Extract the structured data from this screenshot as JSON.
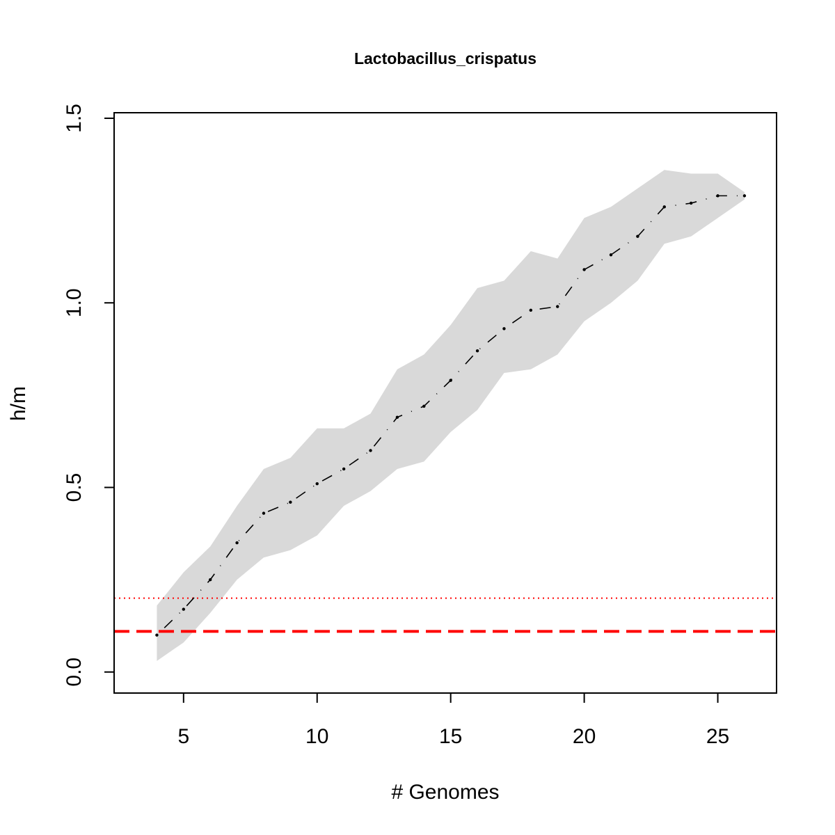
{
  "chart_data": {
    "type": "line",
    "title": "Lactobacillus_crispatus",
    "xlabel": "# Genomes",
    "ylabel": "h/m",
    "xlim": [
      2.4,
      27.2
    ],
    "ylim": [
      -0.057,
      1.515
    ],
    "xticks": [
      5,
      10,
      15,
      20,
      25
    ],
    "xtick_labels": [
      "5",
      "10",
      "15",
      "20",
      "25"
    ],
    "yticks": [
      0.0,
      0.5,
      1.0,
      1.5
    ],
    "ytick_labels": [
      "0.0",
      "0.5",
      "1.0",
      "1.5"
    ],
    "grid": false,
    "colors": {
      "band": "#d9d9d9",
      "series": "#000000",
      "threshold": "#ff0000"
    },
    "series": [
      {
        "style": "dotted-dashed",
        "x": [
          4,
          5,
          6,
          7,
          8,
          9,
          10,
          11,
          12,
          13,
          14,
          15,
          16,
          17,
          18,
          19,
          20,
          21,
          22,
          23,
          24,
          25,
          26
        ],
        "y": [
          0.1,
          0.17,
          0.25,
          0.35,
          0.43,
          0.46,
          0.51,
          0.55,
          0.6,
          0.69,
          0.72,
          0.79,
          0.87,
          0.93,
          0.98,
          0.99,
          1.09,
          1.13,
          1.18,
          1.26,
          1.27,
          1.29,
          1.29
        ],
        "upper": [
          0.18,
          0.27,
          0.34,
          0.45,
          0.55,
          0.58,
          0.66,
          0.66,
          0.7,
          0.82,
          0.86,
          0.94,
          1.04,
          1.06,
          1.14,
          1.12,
          1.23,
          1.26,
          1.31,
          1.36,
          1.35,
          1.35,
          1.3
        ],
        "lower": [
          0.03,
          0.08,
          0.16,
          0.25,
          0.31,
          0.33,
          0.37,
          0.45,
          0.49,
          0.55,
          0.57,
          0.65,
          0.71,
          0.81,
          0.82,
          0.86,
          0.95,
          1.0,
          1.06,
          1.16,
          1.18,
          1.23,
          1.28
        ]
      }
    ],
    "hlines": [
      {
        "y": 0.2,
        "style": "dotted"
      },
      {
        "y": 0.11,
        "style": "dashed"
      }
    ]
  }
}
